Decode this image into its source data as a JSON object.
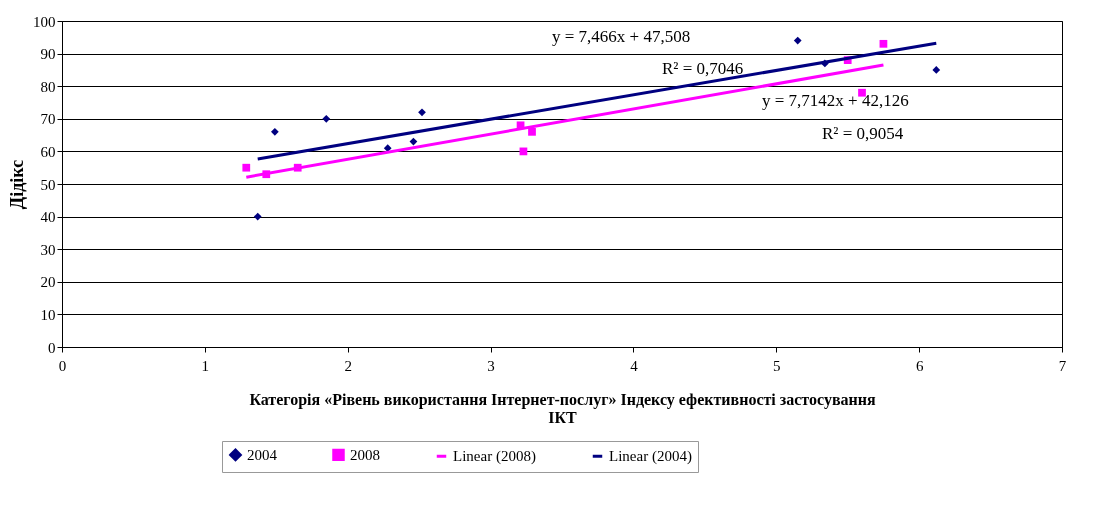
{
  "chart_data": {
    "type": "scatter",
    "xlabel": "Категорія «Рівень використання Інтернет-послуг» Індексу ефективності застосування ІКТ",
    "ylabel": "Дідікс",
    "series": [
      {
        "name": "2004",
        "marker": "diamond",
        "color": "#000080",
        "x": [
          1.37,
          1.49,
          1.85,
          2.28,
          2.46,
          2.52,
          5.15,
          5.34,
          6.12
        ],
        "values": [
          40,
          66,
          70,
          61,
          63,
          72,
          94,
          87,
          85
        ]
      },
      {
        "name": "2008",
        "marker": "square",
        "color": "#ff00ff",
        "x": [
          1.29,
          1.43,
          1.65,
          3.21,
          3.23,
          3.29,
          5.5,
          5.6,
          5.75
        ],
        "values": [
          55,
          53,
          55,
          68,
          60,
          66,
          88,
          78,
          93
        ]
      },
      {
        "name": "Linear (2008)",
        "type": "line",
        "color": "#ff00ff",
        "x": [
          1.29,
          5.75
        ],
        "values": [
          52.1,
          86.5
        ]
      },
      {
        "name": "Linear (2004)",
        "type": "line",
        "color": "#000080",
        "x": [
          1.37,
          6.12
        ],
        "values": [
          57.7,
          93.2
        ]
      }
    ],
    "annotations": [
      "y = 7,466x + 47,508",
      "R² = 0,7046",
      "y = 7,7142x + 42,126",
      "R² = 0,9054"
    ],
    "xlim": [
      0,
      7
    ],
    "xticks": [
      0,
      1,
      2,
      3,
      4,
      5,
      6,
      7
    ],
    "ylim": [
      0,
      100
    ],
    "yticks": [
      0,
      10,
      20,
      30,
      40,
      50,
      60,
      70,
      80,
      90,
      100
    ],
    "grid": "y",
    "legend": "bottom"
  }
}
